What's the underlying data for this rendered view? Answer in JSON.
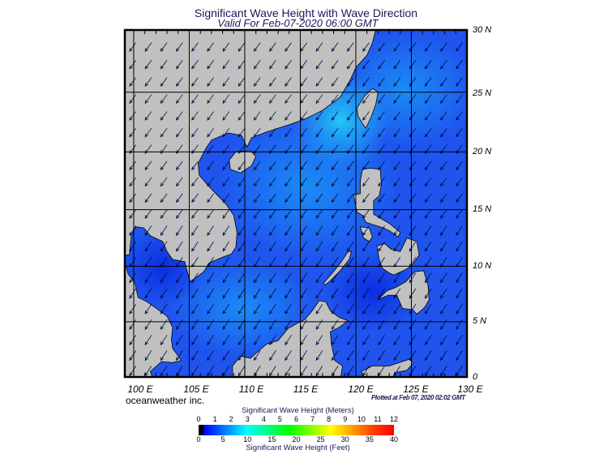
{
  "header": {
    "title": "Significant Wave Height with Wave Direction",
    "subtitle": "Valid For Feb-07-2020 06:00 GMT"
  },
  "map": {
    "region": "South China Sea",
    "lon_range": [
      99.2,
      130
    ],
    "lat_range": [
      0,
      30
    ],
    "projection": "mercator",
    "grid": true,
    "land_color": "#c0c0c0",
    "ocean_color": "#1f55ee",
    "wave_direction": "from northeast",
    "lat_labels": [
      "30 N",
      "25 N",
      "20 N",
      "15 N",
      "10 N",
      "5 N",
      "0"
    ],
    "lon_labels": [
      "100 E",
      "105 E",
      "110 E",
      "115 E",
      "120 E",
      "125 E",
      "130 E"
    ]
  },
  "footer": {
    "brand": "oceanweather inc.",
    "plotted": "Plotted at Feb 07, 2020 02:02 GMT"
  },
  "legend": {
    "title_meters": "Significant Wave Height (Meters)",
    "title_feet": "Significant Wave Height (Feet)",
    "meters": [
      "0",
      "1",
      "2",
      "3",
      "4",
      "5",
      "6",
      "7",
      "8",
      "9",
      "10",
      "11",
      "12"
    ],
    "feet": [
      "0",
      "5",
      "10",
      "15",
      "20",
      "25",
      "30",
      "35",
      "40"
    ],
    "colors": [
      "#000000",
      "#0000ff",
      "#0080ff",
      "#00ffff",
      "#00ff80",
      "#00ff00",
      "#80ff00",
      "#ffff00",
      "#ffa000",
      "#ff4000",
      "#ff0000"
    ]
  }
}
